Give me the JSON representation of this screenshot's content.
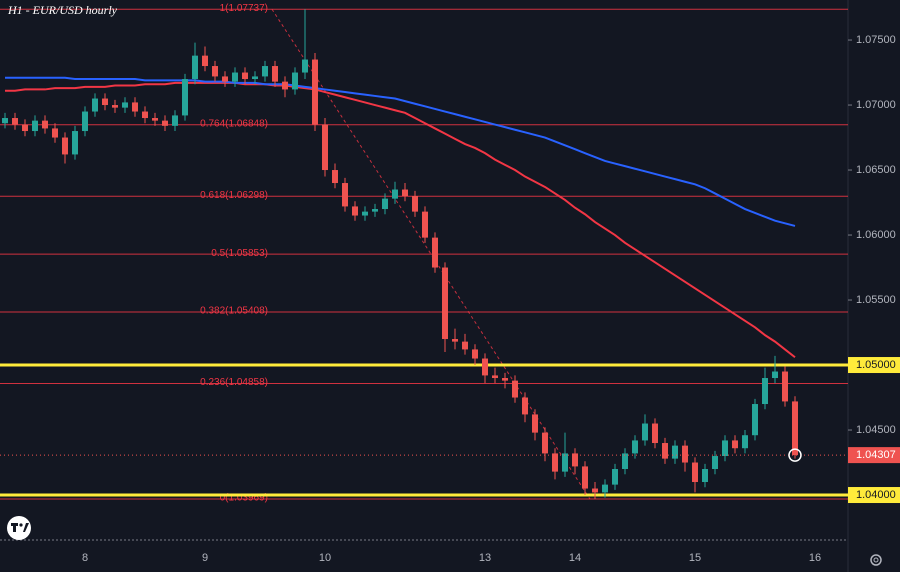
{
  "chart_data": {
    "type": "candlestick",
    "title": "H1 - EUR/USD hourly",
    "categories": [
      null,
      null,
      null,
      null,
      null,
      null,
      null,
      null,
      "8",
      null,
      null,
      null,
      null,
      null,
      null,
      null,
      null,
      null,
      null,
      null,
      "9",
      null,
      null,
      null,
      null,
      null,
      null,
      null,
      null,
      null,
      null,
      null,
      "10",
      null,
      null,
      null,
      null,
      null,
      null,
      null,
      null,
      null,
      null,
      null,
      null,
      null,
      null,
      null,
      "13",
      null,
      null,
      null,
      null,
      null,
      null,
      null,
      null,
      "14",
      null,
      null,
      null,
      null,
      null,
      null,
      null,
      null,
      null,
      null,
      null,
      "15",
      null,
      null,
      null,
      null,
      null,
      null,
      null,
      null,
      null,
      null,
      null,
      "16"
    ],
    "open": [
      1.0686,
      1.069,
      1.0685,
      1.068,
      1.0688,
      1.0682,
      1.0675,
      1.0662,
      1.068,
      1.0695,
      1.0705,
      1.07,
      1.0698,
      1.0702,
      1.0695,
      1.069,
      1.0688,
      1.0684,
      1.0692,
      1.072,
      1.0738,
      1.073,
      1.0722,
      1.0718,
      1.0725,
      1.072,
      1.0722,
      1.073,
      1.0718,
      1.0712,
      1.0725,
      1.0735,
      1.0685,
      1.065,
      1.064,
      1.0622,
      1.0615,
      1.0618,
      1.062,
      1.0628,
      1.0635,
      1.063,
      1.0618,
      1.0598,
      1.0575,
      1.052,
      1.0518,
      1.0512,
      1.0505,
      1.0492,
      1.049,
      1.0488,
      1.0475,
      1.0462,
      1.0448,
      1.0432,
      1.0418,
      1.0432,
      1.0422,
      1.0405,
      1.0402,
      1.0408,
      1.042,
      1.0432,
      1.0442,
      1.0455,
      1.044,
      1.0428,
      1.0438,
      1.0425,
      1.041,
      1.042,
      1.043,
      1.0442,
      1.0436,
      1.0446,
      1.047,
      1.049,
      1.0495,
      1.0472,
      null,
      null
    ],
    "high": [
      1.0694,
      1.0694,
      1.0689,
      1.0692,
      1.0692,
      1.0686,
      1.0679,
      1.0684,
      1.0699,
      1.0709,
      1.0709,
      1.0704,
      1.0706,
      1.0706,
      1.0699,
      1.0694,
      1.0692,
      1.0696,
      1.0724,
      1.0748,
      1.0745,
      1.0734,
      1.0726,
      1.0729,
      1.0729,
      1.0726,
      1.0734,
      1.0734,
      1.0722,
      1.0729,
      1.07737,
      1.074,
      1.069,
      1.0655,
      1.0644,
      1.0626,
      1.0622,
      1.0624,
      1.0632,
      1.0641,
      1.064,
      1.0634,
      1.0622,
      1.0602,
      1.0579,
      1.0528,
      1.0524,
      1.0516,
      1.0509,
      1.0498,
      1.0494,
      1.0492,
      1.0479,
      1.0466,
      1.0452,
      1.0436,
      1.0448,
      1.0436,
      1.0426,
      1.041,
      1.0412,
      1.0424,
      1.0436,
      1.0446,
      1.0462,
      1.0459,
      1.0444,
      1.0442,
      1.0442,
      1.0429,
      1.0424,
      1.0434,
      1.0446,
      1.0446,
      1.045,
      1.0474,
      1.0498,
      1.0507,
      1.0499,
      1.0476,
      null,
      null
    ],
    "low": [
      1.0682,
      1.0681,
      1.0676,
      1.0676,
      1.0678,
      1.0671,
      1.0655,
      1.0658,
      1.0676,
      1.0691,
      1.0696,
      1.0694,
      1.0694,
      1.0691,
      1.0686,
      1.0684,
      1.068,
      1.068,
      1.0688,
      1.0716,
      1.0726,
      1.0718,
      1.0714,
      1.0714,
      1.0716,
      1.0716,
      1.0718,
      1.0714,
      1.0706,
      1.0708,
      1.072,
      1.068,
      1.0645,
      1.0636,
      1.0618,
      1.0611,
      1.0611,
      1.0614,
      1.0616,
      1.0624,
      1.0626,
      1.0614,
      1.0594,
      1.0571,
      1.051,
      1.0512,
      1.0508,
      1.05,
      1.0486,
      1.0486,
      1.0482,
      1.0471,
      1.0456,
      1.0442,
      1.0426,
      1.0412,
      1.0414,
      1.0416,
      1.04,
      1.03969,
      1.0398,
      1.0404,
      1.0416,
      1.0428,
      1.0438,
      1.0436,
      1.0424,
      1.0424,
      1.0418,
      1.0402,
      1.0406,
      1.0416,
      1.0426,
      1.0432,
      1.0432,
      1.0442,
      1.0466,
      1.0486,
      1.0468,
      1.0428,
      null,
      null
    ],
    "close": [
      1.069,
      1.0685,
      1.068,
      1.0688,
      1.0682,
      1.0675,
      1.0662,
      1.068,
      1.0695,
      1.0705,
      1.07,
      1.0698,
      1.0702,
      1.0695,
      1.069,
      1.0688,
      1.0684,
      1.0692,
      1.072,
      1.0738,
      1.073,
      1.0722,
      1.0718,
      1.0725,
      1.072,
      1.0722,
      1.073,
      1.0718,
      1.0712,
      1.0725,
      1.0735,
      1.0685,
      1.065,
      1.064,
      1.0622,
      1.0615,
      1.0618,
      1.062,
      1.0628,
      1.0635,
      1.063,
      1.0618,
      1.0598,
      1.0575,
      1.052,
      1.0518,
      1.0512,
      1.0505,
      1.0492,
      1.049,
      1.0488,
      1.0475,
      1.0462,
      1.0448,
      1.0432,
      1.0418,
      1.0432,
      1.0422,
      1.0405,
      1.0402,
      1.0408,
      1.042,
      1.0432,
      1.0442,
      1.0455,
      1.044,
      1.0428,
      1.0438,
      1.0425,
      1.041,
      1.042,
      1.043,
      1.0442,
      1.0436,
      1.0446,
      1.047,
      1.049,
      1.0495,
      1.0472,
      1.04307,
      null,
      null
    ],
    "up_color": "#26a69a",
    "down_color": "#ef5350",
    "series": [
      {
        "color": "#f23645",
        "values": [
          1.0711,
          1.0711,
          1.0712,
          1.0712,
          1.0712,
          1.0713,
          1.0713,
          1.0713,
          1.0714,
          1.0714,
          1.0714,
          1.0715,
          1.0715,
          1.0715,
          1.0716,
          1.0716,
          1.0716,
          1.0717,
          1.0717,
          1.0717,
          1.0717,
          1.0717,
          1.0717,
          1.0717,
          1.0716,
          1.0716,
          1.0716,
          1.0715,
          1.0715,
          1.0714,
          1.0713,
          1.0712,
          1.071,
          1.0708,
          1.0706,
          1.0704,
          1.0702,
          1.07,
          1.0698,
          1.0696,
          1.0694,
          1.069,
          1.0686,
          1.0682,
          1.0678,
          1.0674,
          1.067,
          1.0667,
          1.0663,
          1.0658,
          1.0654,
          1.065,
          1.0645,
          1.0641,
          1.0637,
          1.0632,
          1.0627,
          1.0621,
          1.0616,
          1.061,
          1.0605,
          1.06,
          1.0594,
          1.0589,
          1.0584,
          1.0579,
          1.0574,
          1.0569,
          1.0564,
          1.0559,
          1.0554,
          1.0549,
          1.0544,
          1.0539,
          1.0534,
          1.0529,
          1.0523,
          1.0518,
          1.0512,
          1.0506,
          null,
          null
        ]
      },
      {
        "color": "#2962ff",
        "values": [
          1.0721,
          1.0721,
          1.0721,
          1.0721,
          1.0721,
          1.0721,
          1.0721,
          1.072,
          1.072,
          1.072,
          1.072,
          1.072,
          1.072,
          1.072,
          1.0719,
          1.0719,
          1.0719,
          1.0719,
          1.0719,
          1.0719,
          1.0718,
          1.0718,
          1.0718,
          1.0717,
          1.0717,
          1.0717,
          1.0716,
          1.0716,
          1.0716,
          1.0715,
          1.0714,
          1.0713,
          1.0712,
          1.0711,
          1.071,
          1.0709,
          1.0708,
          1.0707,
          1.0706,
          1.0705,
          1.0703,
          1.0701,
          1.0699,
          1.0697,
          1.0695,
          1.0693,
          1.0691,
          1.0689,
          1.0687,
          1.0685,
          1.0683,
          1.0681,
          1.0679,
          1.0677,
          1.0675,
          1.0672,
          1.0669,
          1.0666,
          1.0663,
          1.066,
          1.0657,
          1.0655,
          1.0653,
          1.0651,
          1.0649,
          1.0647,
          1.0645,
          1.0643,
          1.0641,
          1.0639,
          1.0636,
          1.0632,
          1.0628,
          1.0624,
          1.062,
          1.0617,
          1.0614,
          1.0611,
          1.0609,
          1.0607,
          null,
          null
        ]
      }
    ],
    "fib_levels": [
      {
        "value": 1.07737,
        "label": "1(1.07737)"
      },
      {
        "value": 1.06848,
        "label": "0.764(1.06848)"
      },
      {
        "value": 1.06298,
        "label": "0.618(1.06298)"
      },
      {
        "value": 1.05853,
        "label": "0.5(1.05853)"
      },
      {
        "value": 1.05408,
        "label": "0.382(1.05408)"
      },
      {
        "value": 1.04858,
        "label": "0.236(1.04858)"
      },
      {
        "value": 1.03969,
        "label": "0(1.03969)"
      }
    ],
    "fib_color": "#f23645",
    "key_levels": [
      {
        "value": 1.05,
        "label": "1.05000"
      },
      {
        "value": 1.04,
        "label": "1.04000"
      }
    ],
    "key_color": "#ffeb3b",
    "last_price": {
      "value": 1.04307,
      "label": "1.04307"
    },
    "ylim": [
      1.03654,
      1.07808
    ],
    "yticks": [
      {
        "value": 1.045,
        "label": "1.04500"
      },
      {
        "value": 1.055,
        "label": "1.05500"
      },
      {
        "value": 1.06,
        "label": "1.06000"
      },
      {
        "value": 1.065,
        "label": "1.06500"
      },
      {
        "value": 1.07,
        "label": "1.07000"
      },
      {
        "value": 1.075,
        "label": "1.07500"
      }
    ]
  }
}
